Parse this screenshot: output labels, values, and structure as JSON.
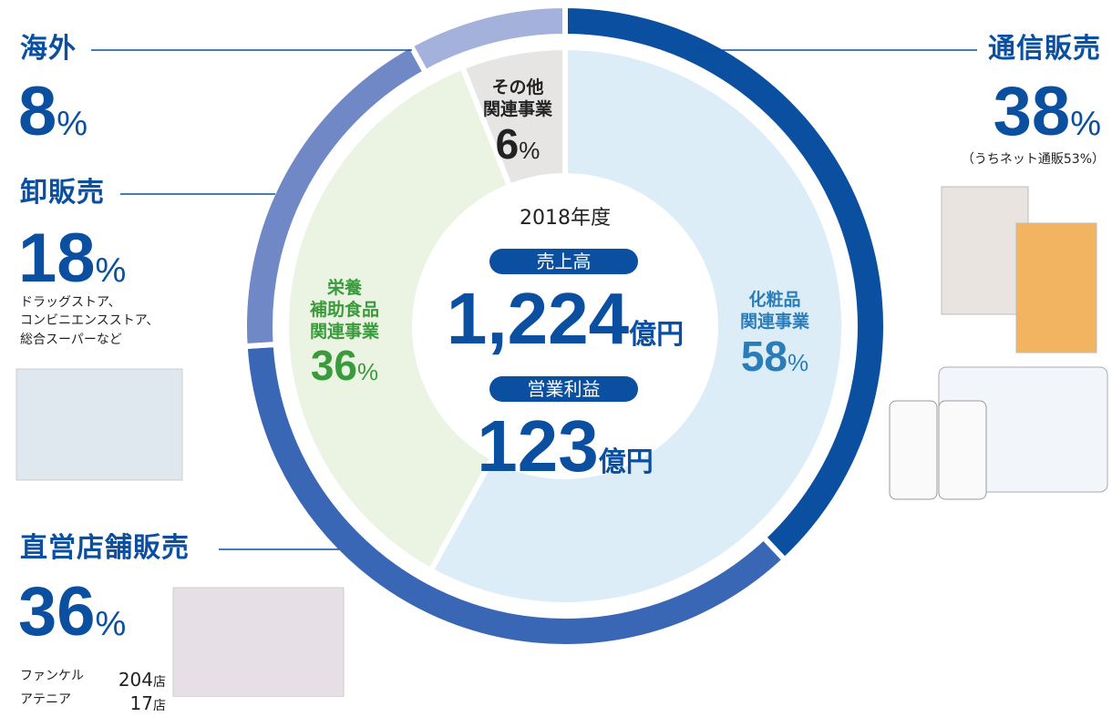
{
  "chart_data": [
    {
      "type": "donut",
      "categories": [
        "通信販売",
        "直営店舗販売",
        "卸販売",
        "海外"
      ],
      "values": [
        38,
        36,
        18,
        8
      ],
      "unit": "%",
      "colors": [
        "#0a4fa0",
        "#3a66b6",
        "#7089c6",
        "#a4b2db"
      ]
    },
    {
      "type": "pie",
      "categories": [
        "化粧品\n関連事業",
        "栄養\n補助食品\n関連事業",
        "その他\n関連事業"
      ],
      "values": [
        58,
        36,
        6
      ],
      "unit": "%",
      "colors": [
        "#dcedf8",
        "#ebf3e2",
        "#e6e5e4"
      ],
      "label_colors": [
        "#2b7db9",
        "#3a9b3c",
        "#222222"
      ]
    }
  ],
  "center": {
    "year": "2018年度",
    "sales_label": "売上高",
    "sales": {
      "value": 1224,
      "label": "1,224"
    },
    "sales_unit": "億円",
    "profit_label": "営業利益",
    "profit": 123,
    "profit_unit": "億円"
  },
  "notes": {
    "mail_order": "（うちネット通販53%）",
    "wholesale": "ドラッグストア、\nコンビニエンスストア、\n総合スーパーなど",
    "stores": [
      {
        "brand": "ファンケル",
        "count": 204,
        "unit": "店"
      },
      {
        "brand": "アテニア",
        "count": 17,
        "unit": "店"
      }
    ]
  }
}
